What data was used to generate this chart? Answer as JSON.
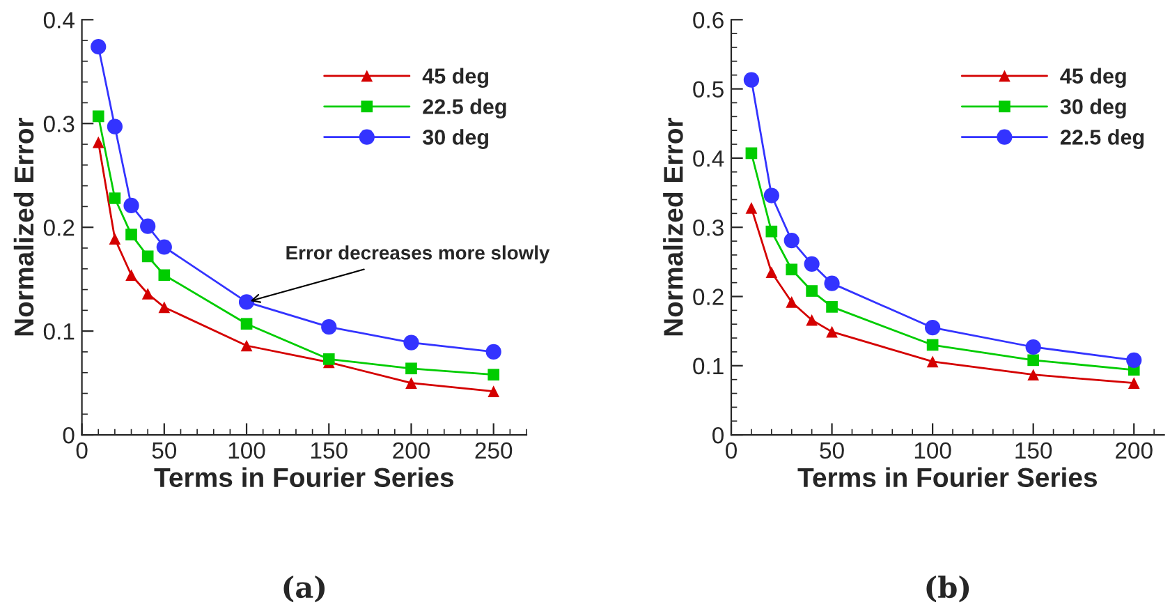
{
  "chart_data": [
    {
      "type": "line",
      "title": "(a)",
      "xlabel": "Terms in Fourier Series",
      "ylabel": "Normalized Error",
      "xlim": [
        0,
        270
      ],
      "xticks": [
        0,
        50,
        100,
        150,
        200,
        250
      ],
      "ylim": [
        0,
        0.4
      ],
      "yticks": [
        0,
        0.1,
        0.2,
        0.3,
        0.4
      ],
      "legend": "top right",
      "grid": false,
      "x": [
        10,
        20,
        30,
        40,
        50,
        100,
        150,
        200,
        250
      ],
      "series": [
        {
          "name": "45 deg",
          "color": "#d40000",
          "marker": "triangle",
          "values": [
            0.282,
            0.189,
            0.154,
            0.136,
            0.123,
            0.086,
            0.07,
            0.05,
            0.042
          ]
        },
        {
          "name": "22.5 deg",
          "color": "#00cc00",
          "marker": "square",
          "values": [
            0.307,
            0.228,
            0.193,
            0.172,
            0.154,
            0.107,
            0.073,
            0.064,
            0.058
          ]
        },
        {
          "name": "30 deg",
          "color": "#3333ff",
          "marker": "circle",
          "values": [
            0.374,
            0.297,
            0.221,
            0.201,
            0.181,
            0.128,
            0.104,
            0.089,
            0.08
          ]
        }
      ],
      "annotations": [
        {
          "text": "Error decreases more slowly",
          "x": 100,
          "y": 0.128
        }
      ]
    },
    {
      "type": "line",
      "title": "(b)",
      "xlabel": "Terms in Fourier Series",
      "ylabel": "Normalized Error",
      "xlim": [
        0,
        215
      ],
      "xticks": [
        0,
        50,
        100,
        150,
        200
      ],
      "ylim": [
        0,
        0.6
      ],
      "yticks": [
        0,
        0.1,
        0.2,
        0.3,
        0.4,
        0.5,
        0.6
      ],
      "legend": "top right",
      "grid": false,
      "x": [
        10,
        20,
        30,
        40,
        50,
        100,
        150,
        200
      ],
      "series": [
        {
          "name": "45 deg",
          "color": "#d40000",
          "marker": "triangle",
          "values": [
            0.328,
            0.235,
            0.192,
            0.166,
            0.149,
            0.106,
            0.087,
            0.075
          ]
        },
        {
          "name": "30 deg",
          "color": "#00cc00",
          "marker": "square",
          "values": [
            0.407,
            0.294,
            0.239,
            0.208,
            0.185,
            0.13,
            0.108,
            0.094
          ]
        },
        {
          "name": "22.5 deg",
          "color": "#3333ff",
          "marker": "circle",
          "values": [
            0.513,
            0.346,
            0.281,
            0.247,
            0.219,
            0.155,
            0.127,
            0.108
          ]
        }
      ]
    }
  ]
}
